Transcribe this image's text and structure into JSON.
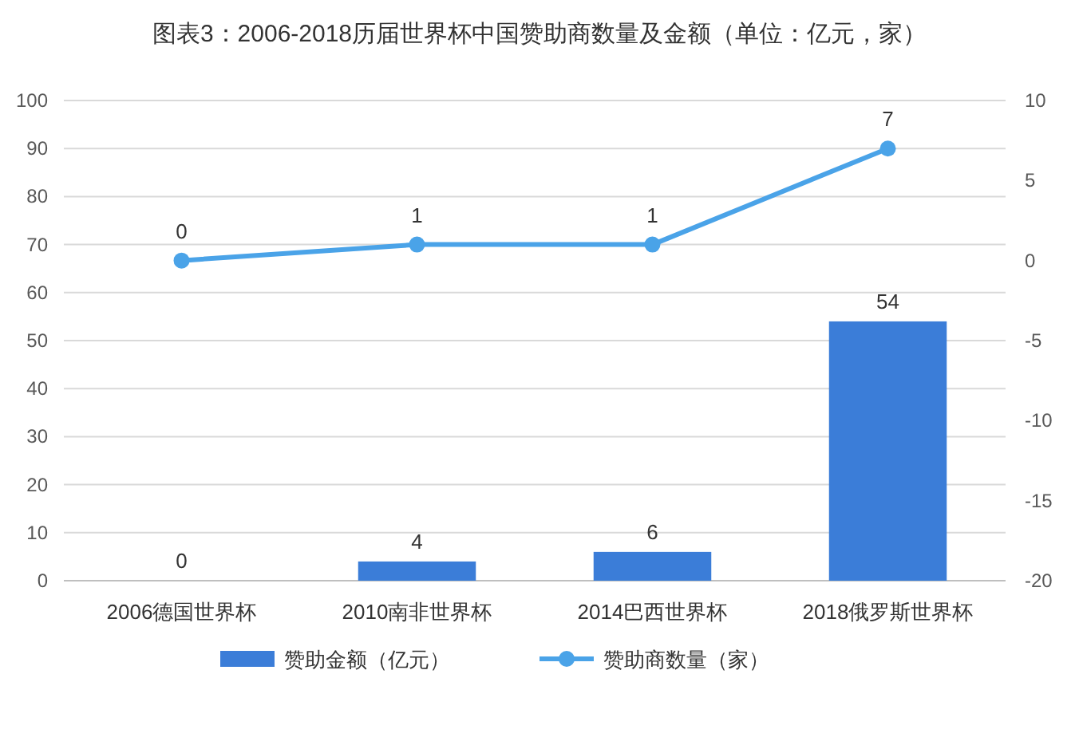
{
  "chart_data": {
    "type": "bar",
    "title": "图表3：2006-2018历届世界杯中国赞助商数量及金额（单位：亿元，家）",
    "categories": [
      "2006德国世界杯",
      "2010南非世界杯",
      "2014巴西世界杯",
      "2018俄罗斯世界杯"
    ],
    "series": [
      {
        "name": "赞助金额（亿元）",
        "color": "#3b7dd8",
        "values": [
          0,
          4,
          6,
          54
        ]
      },
      {
        "name": "赞助商数量（家）",
        "type": "line",
        "axis": "y2",
        "color": "#4aa3e8",
        "values": [
          0,
          1,
          1,
          7
        ],
        "marker": "circle"
      }
    ],
    "ylim": [
      0,
      100
    ],
    "yticks": [
      0,
      10,
      20,
      30,
      40,
      50,
      60,
      70,
      80,
      90,
      100
    ],
    "y2lim": [
      -20,
      10
    ],
    "y2ticks": [
      -20,
      -15,
      -10,
      -5,
      0,
      5,
      10
    ],
    "grid": "y",
    "legend": "bottom",
    "data_labels": true
  }
}
